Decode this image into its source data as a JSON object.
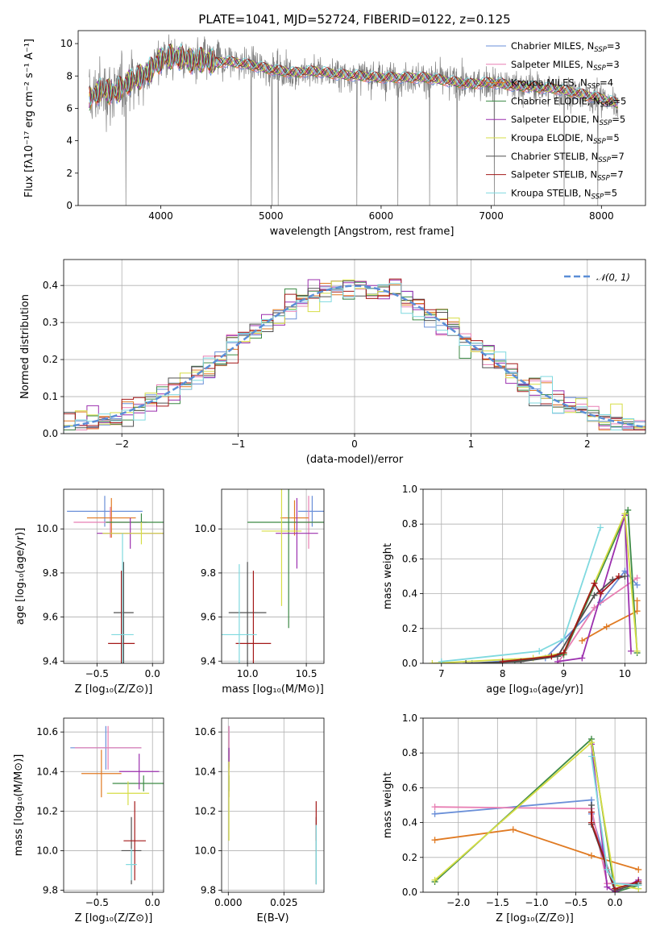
{
  "figure_title": "PLATE=1041, MJD=52724, FIBERID=0122, z=0.125",
  "models": [
    {
      "name": "Chabrier MILES, N",
      "sub": "SSP",
      "val": "=3",
      "color": "#6a8fd8"
    },
    {
      "name": "Salpeter MILES, N",
      "sub": "SSP",
      "val": "=3",
      "color": "#e87fb3"
    },
    {
      "name": "Kroupa MILES, N",
      "sub": "SSP",
      "val": "=4",
      "color": "#e07a22"
    },
    {
      "name": "Chabrier ELODIE, N",
      "sub": "SSP",
      "val": "=5",
      "color": "#3c8a45"
    },
    {
      "name": "Salpeter ELODIE, N",
      "sub": "SSP",
      "val": "=5",
      "color": "#9b2fae"
    },
    {
      "name": "Kroupa ELODIE, N",
      "sub": "SSP",
      "val": "=5",
      "color": "#d6dd45"
    },
    {
      "name": "Chabrier STELIB, N",
      "sub": "SSP",
      "val": "=7",
      "color": "#505050"
    },
    {
      "name": "Salpeter STELIB, N",
      "sub": "SSP",
      "val": "=7",
      "color": "#a31818"
    },
    {
      "name": "Kroupa STELIB, N",
      "sub": "SSP",
      "val": "=5",
      "color": "#7fd9df"
    }
  ],
  "chart_data": [
    {
      "type": "line",
      "id": "spectrum",
      "xlabel": "wavelength [Angstrom, rest frame]",
      "ylabel": "Flux [fλ10⁻¹⁷ erg cm⁻² s⁻¹ A⁻¹]",
      "xlim": [
        3250,
        8400
      ],
      "ylim": [
        0,
        10.8
      ],
      "xticks": [
        4000,
        5000,
        6000,
        7000,
        8000
      ],
      "yticks": [
        0,
        2,
        4,
        6,
        8,
        10
      ],
      "data_color": "#808080",
      "continuum_x": [
        3350,
        3450,
        3600,
        3700,
        3800,
        3900,
        4000,
        4100,
        4200,
        4300,
        4400,
        4500,
        4600,
        4800,
        5000,
        5200,
        5400,
        5600,
        5800,
        6000,
        6200,
        6400,
        6600,
        6800,
        7000,
        7200,
        7400,
        7600,
        7800,
        8000,
        8150
      ],
      "continuum_y": [
        6.6,
        7.1,
        7.0,
        7.6,
        7.9,
        8.3,
        9.0,
        9.2,
        9.1,
        8.9,
        9.0,
        8.8,
        8.9,
        8.7,
        8.4,
        8.2,
        8.3,
        8.1,
        8.0,
        7.9,
        7.9,
        7.9,
        7.7,
        7.5,
        7.6,
        7.4,
        7.3,
        7.2,
        6.9,
        6.6,
        6.3
      ]
    },
    {
      "type": "histogram",
      "id": "residuals",
      "xlabel": "(data-model)/error",
      "ylabel": "Normed distribution",
      "xlim": [
        -2.5,
        2.5
      ],
      "ylim": [
        0,
        0.47
      ],
      "xticks": [
        -2,
        -1,
        0,
        1,
        2
      ],
      "yticks": [
        0.0,
        0.1,
        0.2,
        0.3,
        0.4
      ],
      "bin_width": 0.1,
      "legend": "𝒩(0, 1)",
      "legend_color": "#5b8ed6"
    },
    {
      "type": "errorbar",
      "id": "age_vs_Z",
      "xlabel": "Z [log₁₀(Z/Z⊙)]",
      "ylabel": "age  [log₁₀(age/yr)]",
      "xlim": [
        -0.8,
        0.1
      ],
      "ylim": [
        9.39,
        10.18
      ],
      "xticks": [
        -0.5,
        0.0
      ],
      "yticks": [
        9.4,
        9.6,
        9.8,
        10.0
      ],
      "points": [
        {
          "x": -0.43,
          "xerr": 0.34,
          "y": 10.08,
          "yerr": 0.07
        },
        {
          "x": -0.38,
          "xerr": 0.33,
          "y": 10.03,
          "yerr": 0.07
        },
        {
          "x": -0.37,
          "xerr": 0.22,
          "y": 10.05,
          "yerr": 0.09
        },
        {
          "x": -0.1,
          "xerr": 0.32,
          "y": 10.03,
          "yerr": 0.04
        },
        {
          "x": -0.2,
          "xerr": 0.3,
          "y": 9.98,
          "yerr": 0.07
        },
        {
          "x": -0.1,
          "xerr": 0.35,
          "y": 9.98,
          "yerr": 0.05
        },
        {
          "x": -0.26,
          "xerr": 0.09,
          "y": 9.62,
          "yerr": 0.23
        },
        {
          "x": -0.28,
          "xerr": 0.12,
          "y": 9.48,
          "yerr": 0.33
        },
        {
          "x": -0.27,
          "xerr": 0.1,
          "y": 9.52,
          "yerr": 0.46
        }
      ]
    },
    {
      "type": "errorbar",
      "id": "age_vs_mass",
      "xlabel": "mass [log₁₀(M/M⊙)]",
      "ylabel": "",
      "xlim": [
        9.78,
        10.65
      ],
      "ylim": [
        9.39,
        10.18
      ],
      "xticks": [
        10.0,
        10.5
      ],
      "yticks": [
        9.4,
        9.6,
        9.8,
        10.0
      ],
      "points": [
        {
          "x": 10.55,
          "xerr": 0.12,
          "y": 10.08,
          "yerr": 0.07
        },
        {
          "x": 10.52,
          "xerr": 0.12,
          "y": 10.03,
          "yerr": 0.12
        },
        {
          "x": 10.4,
          "xerr": 0.12,
          "y": 10.05,
          "yerr": 0.08
        },
        {
          "x": 10.35,
          "xerr": 0.35,
          "y": 10.03,
          "yerr": 0.48
        },
        {
          "x": 10.42,
          "xerr": 0.18,
          "y": 9.98,
          "yerr": 0.16
        },
        {
          "x": 10.29,
          "xerr": 0.17,
          "y": 9.99,
          "yerr": 0.34
        },
        {
          "x": 10.0,
          "xerr": 0.16,
          "y": 9.62,
          "yerr": 0.23
        },
        {
          "x": 10.05,
          "xerr": 0.15,
          "y": 9.48,
          "yerr": 0.33
        },
        {
          "x": 9.93,
          "xerr": 0.15,
          "y": 9.52,
          "yerr": 0.32
        }
      ]
    },
    {
      "type": "line",
      "id": "weight_vs_age",
      "xlabel": "age  [log₁₀(age/yr)]",
      "ylabel": "mass weight",
      "xlim": [
        6.7,
        10.35
      ],
      "ylim": [
        0,
        1.0
      ],
      "xticks": [
        7,
        8,
        9,
        10
      ],
      "yticks": [
        0.0,
        0.2,
        0.4,
        0.6,
        0.8,
        1.0
      ],
      "series": [
        {
          "x": [
            7.5,
            8.7,
            9.6,
            10.0,
            10.2
          ],
          "y": [
            0.0,
            0.03,
            0.35,
            0.53,
            0.45
          ]
        },
        {
          "x": [
            8.9,
            9.5,
            10.2
          ],
          "y": [
            0.0,
            0.32,
            0.49
          ]
        },
        {
          "x": [
            9.3,
            9.7,
            10.2,
            10.2
          ],
          "y": [
            0.13,
            0.21,
            0.3,
            0.36
          ]
        },
        {
          "x": [
            8.2,
            9.0,
            10.05,
            10.2
          ],
          "y": [
            0.01,
            0.05,
            0.88,
            0.06
          ]
        },
        {
          "x": [
            8.9,
            9.3,
            10.0,
            10.1
          ],
          "y": [
            0.01,
            0.03,
            0.85,
            0.07
          ]
        },
        {
          "x": [
            6.85,
            8.5,
            9.0,
            10.0,
            10.2
          ],
          "y": [
            0.0,
            0.03,
            0.06,
            0.86,
            0.07
          ]
        },
        {
          "x": [
            7.4,
            8.3,
            8.9,
            9.5,
            9.8,
            10.0
          ],
          "y": [
            0.0,
            0.01,
            0.04,
            0.39,
            0.48,
            0.5
          ]
        },
        {
          "x": [
            8.0,
            8.8,
            9.0,
            9.5,
            9.6,
            9.9
          ],
          "y": [
            0.01,
            0.04,
            0.06,
            0.46,
            0.4,
            0.5
          ]
        },
        {
          "x": [
            7.0,
            8.6,
            9.0,
            9.6
          ],
          "y": [
            0.01,
            0.07,
            0.14,
            0.78
          ]
        }
      ]
    },
    {
      "type": "errorbar",
      "id": "mass_vs_Z",
      "xlabel": "Z [log₁₀(Z/Z⊙)]",
      "ylabel": "mass [log₁₀(M/M⊙)]",
      "xlim": [
        -0.8,
        0.1
      ],
      "ylim": [
        9.79,
        10.67
      ],
      "xticks": [
        -0.5,
        0.0
      ],
      "yticks": [
        9.8,
        10.0,
        10.2,
        10.4,
        10.6
      ],
      "points": [
        {
          "x": -0.42,
          "xerr": 0.32,
          "y": 10.52,
          "yerr": 0.11
        },
        {
          "x": -0.4,
          "xerr": 0.3,
          "y": 10.52,
          "yerr": 0.11
        },
        {
          "x": -0.46,
          "xerr": 0.18,
          "y": 10.39,
          "yerr": 0.12
        },
        {
          "x": -0.08,
          "xerr": 0.28,
          "y": 10.34,
          "yerr": 0.04
        },
        {
          "x": -0.12,
          "xerr": 0.18,
          "y": 10.4,
          "yerr": 0.09
        },
        {
          "x": -0.22,
          "xerr": 0.19,
          "y": 10.29,
          "yerr": 0.06
        },
        {
          "x": -0.19,
          "xerr": 0.09,
          "y": 10.0,
          "yerr": 0.17
        },
        {
          "x": -0.16,
          "xerr": 0.1,
          "y": 10.05,
          "yerr": 0.2
        },
        {
          "x": -0.19,
          "xerr": 0.05,
          "y": 9.93,
          "yerr": 0.08
        }
      ]
    },
    {
      "type": "errorbar",
      "id": "mass_vs_ebv",
      "xlabel": "E(B-V)",
      "ylabel": "",
      "xlim": [
        -0.003,
        0.043
      ],
      "ylim": [
        9.79,
        10.67
      ],
      "xticks": [
        0.0,
        0.025
      ],
      "yticklabels_shown": true,
      "yticks": [
        9.8,
        10.0,
        10.2,
        10.4,
        10.6
      ],
      "points": [
        {
          "x": 0.0003,
          "xerr": 0,
          "y": 10.52,
          "yerr": 0.11
        },
        {
          "x": 0.0003,
          "xerr": 0,
          "y": 10.52,
          "yerr": 0.11
        },
        {
          "x": 0.0003,
          "xerr": 0,
          "y": 10.39,
          "yerr": 0.12
        },
        {
          "x": 0.0003,
          "xerr": 0,
          "y": 10.34,
          "yerr": 0.04
        },
        {
          "x": 0.0003,
          "xerr": 0,
          "y": 10.47,
          "yerr": 0.05
        },
        {
          "x": 0.0003,
          "xerr": 0,
          "y": 10.25,
          "yerr": 0.2
        },
        {
          "x": 0.0395,
          "xerr": 0,
          "y": 10.0,
          "yerr": 0.17
        },
        {
          "x": 0.0395,
          "xerr": 0,
          "y": 10.15,
          "yerr": 0.1
        },
        {
          "x": 0.0395,
          "xerr": 0,
          "y": 9.98,
          "yerr": 0.15
        }
      ]
    },
    {
      "type": "line",
      "id": "weight_vs_Z",
      "xlabel": "Z [log₁₀(Z/Z⊙)]",
      "ylabel": "mass weight",
      "xlim": [
        -2.45,
        0.4
      ],
      "ylim": [
        0,
        1.0
      ],
      "xticks": [
        -2.0,
        -1.5,
        -1.0,
        -0.5,
        0.0
      ],
      "yticks": [
        0.0,
        0.2,
        0.4,
        0.6,
        0.8,
        1.0
      ],
      "series": [
        {
          "x": [
            -2.3,
            -0.3,
            -0.3,
            0.0
          ],
          "y": [
            0.45,
            0.53,
            0.45,
            0.0
          ]
        },
        {
          "x": [
            -2.3,
            -0.3,
            -0.1,
            0.3
          ],
          "y": [
            0.49,
            0.48,
            0.05,
            0.05
          ]
        },
        {
          "x": [
            -2.3,
            -1.3,
            -0.3,
            0.3
          ],
          "y": [
            0.3,
            0.36,
            0.21,
            0.13
          ]
        },
        {
          "x": [
            -2.3,
            -0.3,
            0.0,
            0.3
          ],
          "y": [
            0.06,
            0.88,
            0.0,
            0.04
          ]
        },
        {
          "x": [
            -0.3,
            -0.1,
            0.0,
            0.3
          ],
          "y": [
            0.85,
            0.03,
            0.0,
            0.07
          ]
        },
        {
          "x": [
            -2.3,
            -0.3,
            0.0,
            0.3
          ],
          "y": [
            0.07,
            0.86,
            0.04,
            0.02
          ]
        },
        {
          "x": [
            -0.3,
            -0.3,
            0.0,
            0.3
          ],
          "y": [
            0.5,
            0.39,
            0.01,
            0.05
          ]
        },
        {
          "x": [
            -0.3,
            -0.3,
            0.0,
            0.3
          ],
          "y": [
            0.46,
            0.4,
            0.02,
            0.06
          ]
        },
        {
          "x": [
            -0.3,
            -0.1,
            0.0,
            0.3
          ],
          "y": [
            0.78,
            0.13,
            0.05,
            0.04
          ]
        }
      ]
    }
  ]
}
